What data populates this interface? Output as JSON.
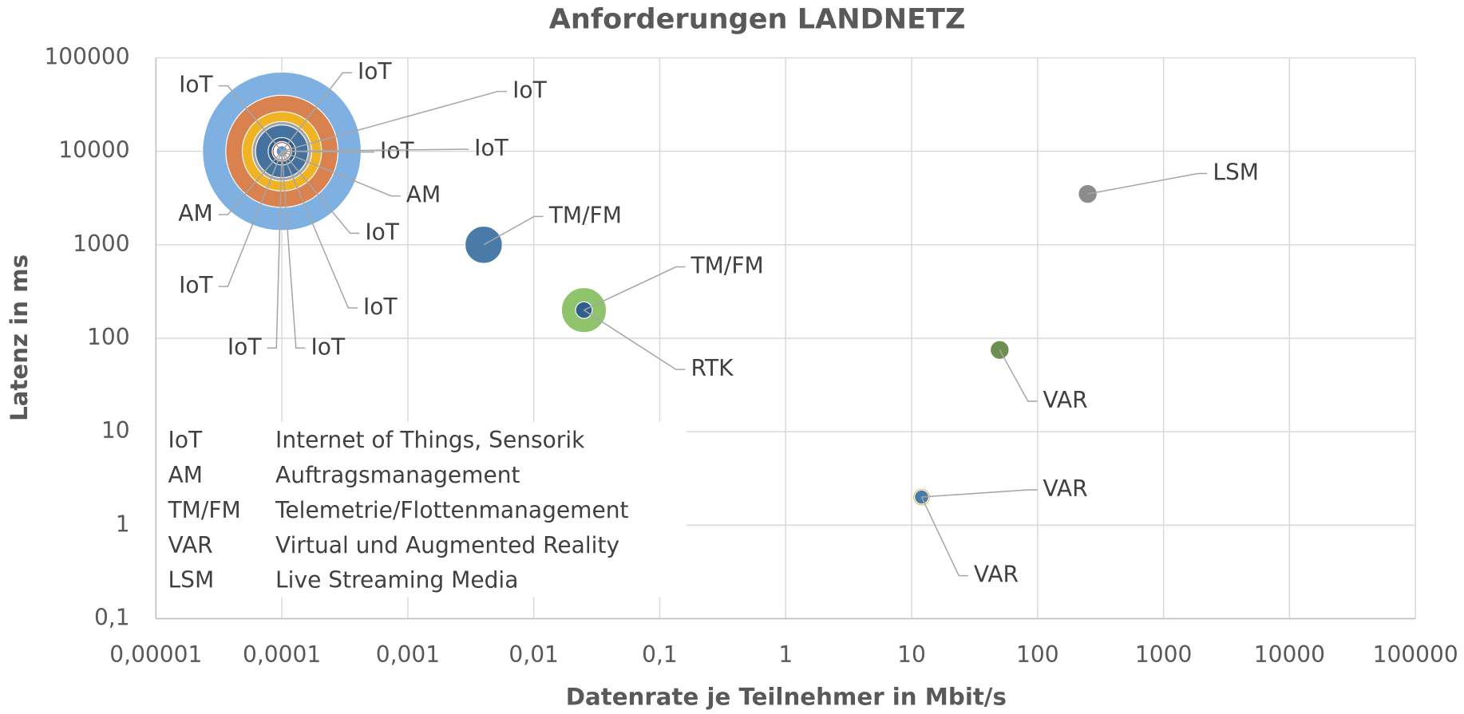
{
  "chart_data": {
    "type": "bubble",
    "title": "Anforderungen LANDNETZ",
    "xlabel": "Datenrate je Teilnehmer in Mbit/s",
    "ylabel": "Latenz in ms",
    "xscale": "log",
    "yscale": "log",
    "grid": true,
    "xlim": [
      1e-05,
      100000
    ],
    "ylim": [
      0.1,
      100000
    ],
    "xticks": [
      {
        "value": 1e-05,
        "label": "0,00001"
      },
      {
        "value": 0.0001,
        "label": "0,0001"
      },
      {
        "value": 0.001,
        "label": "0,001"
      },
      {
        "value": 0.01,
        "label": "0,01"
      },
      {
        "value": 0.1,
        "label": "0,1"
      },
      1,
      10,
      100,
      1000,
      10000,
      100000
    ],
    "yticks": [
      {
        "value": 0.1,
        "label": "0,1"
      },
      1,
      10,
      100,
      1000,
      10000,
      100000
    ],
    "series": [
      {
        "name": "AM",
        "color": "#7eb1e1",
        "x": [
          0.0001
        ],
        "values": [
          10000
        ],
        "sizes": [
          100
        ]
      },
      {
        "name": "IoT",
        "color": "#d9814f",
        "x": [
          0.0001
        ],
        "values": [
          10000
        ],
        "sizes": [
          50
        ]
      },
      {
        "name": "AM",
        "color": "#f0b323",
        "x": [
          0.0001
        ],
        "values": [
          10000
        ],
        "sizes": [
          25
        ]
      },
      {
        "name": "IoT",
        "color": "#a5a5a5",
        "x": [
          0.0001
        ],
        "values": [
          10000
        ],
        "sizes": [
          14
        ]
      },
      {
        "name": "IoT",
        "color": "#44719e",
        "x": [
          0.0001
        ],
        "values": [
          10000
        ],
        "sizes": [
          11
        ]
      },
      {
        "name": "IoT",
        "color": "#2f5f8a",
        "x": [
          0.0001
        ],
        "values": [
          10000
        ],
        "sizes": [
          3
        ]
      },
      {
        "name": "IoT",
        "color": "#a33b28",
        "x": [
          0.0001
        ],
        "values": [
          10000
        ],
        "sizes": [
          1.5
        ]
      },
      {
        "name": "IoT",
        "color": "#c5622c",
        "x": [
          0.0001
        ],
        "values": [
          10000
        ],
        "sizes": [
          1
        ]
      },
      {
        "name": "IoT",
        "color": "#888888",
        "x": [
          0.0001
        ],
        "values": [
          10000
        ],
        "sizes": [
          0.8
        ]
      },
      {
        "name": "IoT",
        "color": "#d4a72c",
        "x": [
          0.0001
        ],
        "values": [
          10000
        ],
        "sizes": [
          0.7
        ]
      },
      {
        "name": "IoT",
        "color": "#8fc36c",
        "x": [
          0.0001
        ],
        "values": [
          10000
        ],
        "sizes": [
          0.6
        ]
      },
      {
        "name": "IoT",
        "color": "#5b8fc9",
        "x": [
          0.0001
        ],
        "values": [
          10000
        ],
        "sizes": [
          0.5
        ]
      },
      {
        "name": "TM/FM",
        "color": "#4a7aa8",
        "x": [
          0.004
        ],
        "values": [
          1000
        ],
        "sizes": [
          5.5
        ]
      },
      {
        "name": "RTK",
        "color": "#8fc36c",
        "x": [
          0.025
        ],
        "values": [
          200
        ],
        "sizes": [
          8
        ]
      },
      {
        "name": "TM/FM",
        "color": "#2f5f8a",
        "x": [
          0.025
        ],
        "values": [
          200
        ],
        "sizes": [
          1.1
        ]
      },
      {
        "name": "LSM",
        "color": "#8c8c8c",
        "x": [
          250
        ],
        "values": [
          3500
        ],
        "sizes": [
          1.4
        ]
      },
      {
        "name": "VAR",
        "color": "#6b8f4e",
        "x": [
          50
        ],
        "values": [
          75
        ],
        "sizes": [
          1.4
        ]
      },
      {
        "name": "VAR",
        "color": "#d4a72c",
        "x": [
          12
        ],
        "values": [
          2
        ],
        "sizes": [
          1.2
        ]
      },
      {
        "name": "VAR",
        "color": "#4a7aa8",
        "x": [
          12
        ],
        "values": [
          2
        ],
        "sizes": [
          0.8
        ]
      }
    ],
    "annotations": [
      {
        "abbr": "IoT",
        "text": "Internet of Things, Sensorik"
      },
      {
        "abbr": "AM",
        "text": "Auftragsmanagement"
      },
      {
        "abbr": "TM/FM",
        "text": "Telemetrie/Flottenmanagement"
      },
      {
        "abbr": "VAR",
        "text": "Virtual und Augmented Reality"
      },
      {
        "abbr": "LSM",
        "text": "Live Streaming Media"
      }
    ]
  }
}
